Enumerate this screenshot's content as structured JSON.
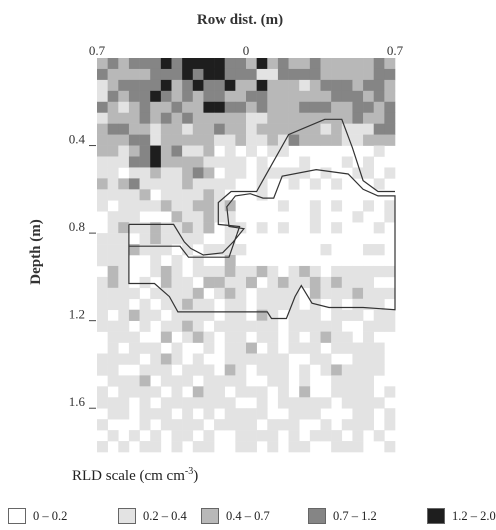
{
  "chart_data": {
    "type": "heatmap",
    "title": "Row dist. (m)",
    "ylabel": "Depth (m)",
    "x_ticks": [
      {
        "value": -0.7,
        "label": "0.7"
      },
      {
        "value": 0,
        "label": "0"
      },
      {
        "value": 0.7,
        "label": "0.7"
      }
    ],
    "y_ticks": [
      {
        "value": 0.4,
        "label": "0.4"
      },
      {
        "value": 0.8,
        "label": "0.8"
      },
      {
        "value": 1.2,
        "label": "1.2"
      },
      {
        "value": 1.6,
        "label": "1.6"
      }
    ],
    "xlim": [
      -0.7,
      0.7
    ],
    "ylim": [
      0,
      1.8
    ],
    "cell_size": 0.05,
    "columns": 28,
    "rows": 36,
    "scale_title_prefix": "RLD scale (cm cm",
    "scale_title_exp": "-3",
    "scale_title_suffix": ")",
    "legend": [
      {
        "label": "0 – 0.2",
        "color": "#ffffff"
      },
      {
        "label": "0.2 – 0.4",
        "color": "#e3e3e3"
      },
      {
        "label": "0.4 – 0.7",
        "color": "#b8b8b8"
      },
      {
        "label": "0.7 – 1.2",
        "color": "#858585"
      },
      {
        "label": "1.2 – 2.0",
        "color": "#1e1e1e"
      }
    ],
    "cells": [
      "2323334344443324232232222232",
      "3222233343443331133332222233",
      "1233334234334224222123332332",
      "1323343232332233222222333232",
      "3212322322443323222333223323",
      "1222323232222211222222223223",
      "2332212212232212222221211133",
      "2223312222211211213222211222",
      "2212342311201010110000000010",
      "1113342222111101000100010100",
      "1101121123201101111101001101",
      "2123111121111001001010100010",
      "1111201111210001000000000000",
      "1011112112212000010010100101",
      "0111000211211000000010001001",
      "0121121121201101010010100010",
      "1110121111001000000000000000",
      "1112111010111100000001000110",
      "1110010101002000000000000000",
      "0210012101112112101210111111",
      "1210102110221120121121211100",
      "1111011112012101111021112111",
      "1110101121101101111010101110",
      "1012110111101102101110111011",
      "1110101121011111101111100111",
      "0111002012101101101012110100",
      "0101110100101120101110111110",
      "1111012101001111110011001110",
      "1100111011102101110101211110",
      "0111201110111100110100111100",
      "1011110102110111010200111101",
      "1110101111111001011111011110",
      "0110111010101111001110001101",
      "1000101111011110111001011101",
      "0101010110100111101011101010",
      "1010110101100110101100111001"
    ],
    "boundaries": [
      {
        "name": "upper-boundary",
        "points": [
          [
            -0.55,
            0.86
          ],
          [
            -0.31,
            0.86
          ],
          [
            -0.27,
            0.91
          ],
          [
            -0.08,
            0.91
          ],
          [
            -0.03,
            0.77
          ],
          [
            -0.13,
            0.76
          ],
          [
            -0.13,
            0.66
          ],
          [
            -0.07,
            0.61
          ],
          [
            0.05,
            0.61
          ],
          [
            0.09,
            0.54
          ],
          [
            0.2,
            0.35
          ],
          [
            0.37,
            0.28
          ],
          [
            0.45,
            0.28
          ],
          [
            0.5,
            0.41
          ],
          [
            0.55,
            0.56
          ],
          [
            0.62,
            0.61
          ],
          [
            0.7,
            0.61
          ]
        ]
      },
      {
        "name": "lower-boundary",
        "points": [
          [
            -0.55,
            0.76
          ],
          [
            -0.34,
            0.76
          ],
          [
            -0.29,
            0.84
          ],
          [
            -0.26,
            0.87
          ],
          [
            -0.2,
            0.9
          ],
          [
            -0.11,
            0.89
          ],
          [
            -0.06,
            0.84
          ],
          [
            -0.01,
            0.78
          ],
          [
            -0.08,
            0.77
          ],
          [
            -0.09,
            0.68
          ],
          [
            -0.05,
            0.63
          ],
          [
            0.02,
            0.62
          ],
          [
            0.08,
            0.64
          ],
          [
            0.13,
            0.64
          ],
          [
            0.17,
            0.54
          ],
          [
            0.33,
            0.51
          ],
          [
            0.48,
            0.53
          ],
          [
            0.55,
            0.6
          ],
          [
            0.62,
            0.63
          ],
          [
            0.7,
            0.63
          ],
          [
            0.7,
            1.15
          ],
          [
            0.55,
            1.14
          ],
          [
            0.39,
            1.14
          ],
          [
            0.31,
            1.12
          ],
          [
            0.26,
            1.04
          ],
          [
            0.23,
            1.09
          ],
          [
            0.19,
            1.19
          ],
          [
            0.12,
            1.19
          ],
          [
            0.1,
            1.16
          ],
          [
            -0.04,
            1.16
          ],
          [
            -0.32,
            1.16
          ],
          [
            -0.36,
            1.09
          ],
          [
            -0.43,
            1.03
          ],
          [
            -0.55,
            1.03
          ],
          [
            -0.55,
            0.76
          ]
        ]
      }
    ]
  }
}
